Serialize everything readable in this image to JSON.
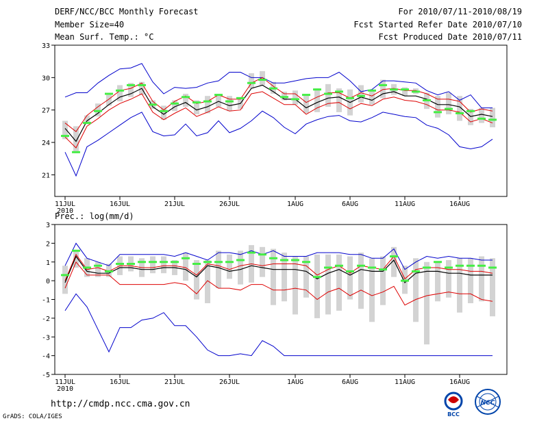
{
  "header": {
    "title": "DERF/NCC/BCC Monthly Forecast",
    "member_size": "Member Size=40",
    "variable": "Mean Surf. Temp.: °C",
    "period": "For 2010/07/11-2010/08/19",
    "started": "Fcst Started Refer Date 2010/07/10",
    "produced": "Fcst Produced Date 2010/07/11"
  },
  "footer": {
    "url": "http://cmdp.ncc.cma.gov.cn",
    "grads": "GrADS: COLA/IGES",
    "logo1_text": "BCC",
    "logo2_text": "NCC"
  },
  "colors": {
    "box": "#d3d3d3",
    "median": "#44ee44",
    "mean": "#000000",
    "sd": "#dd0000",
    "extreme": "#0000cc"
  },
  "chart_data": [
    {
      "type": "line",
      "title": "Mean Surf. Temp.: °C",
      "ylim": [
        19,
        33
      ],
      "yticks": [
        21,
        24,
        27,
        30,
        33
      ],
      "x_ticks": [
        {
          "day": 1,
          "label": "11JUL",
          "sub": "2010"
        },
        {
          "day": 6,
          "label": "16JUL",
          "sub": ""
        },
        {
          "day": 11,
          "label": "21JUL",
          "sub": ""
        },
        {
          "day": 16,
          "label": "26JUL",
          "sub": ""
        },
        {
          "day": 22,
          "label": "1AUG",
          "sub": ""
        },
        {
          "day": 27,
          "label": "6AUG",
          "sub": ""
        },
        {
          "day": 32,
          "label": "11AUG",
          "sub": ""
        },
        {
          "day": 37,
          "label": "16AUG",
          "sub": ""
        }
      ],
      "x": [
        1,
        2,
        3,
        4,
        5,
        6,
        7,
        8,
        9,
        10,
        11,
        12,
        13,
        14,
        15,
        16,
        17,
        18,
        19,
        20,
        21,
        22,
        23,
        24,
        25,
        26,
        27,
        28,
        29,
        30,
        31,
        32,
        33,
        34,
        35,
        36,
        37,
        38,
        39,
        40
      ],
      "series": [
        {
          "name": "max",
          "values": [
            28.2,
            28.6,
            28.6,
            29.5,
            30.2,
            30.8,
            30.9,
            31.3,
            29.6,
            28.5,
            29.1,
            29.0,
            29.1,
            29.5,
            29.7,
            30.5,
            30.5,
            30.0,
            30.0,
            29.5,
            29.5,
            29.7,
            29.9,
            30.0,
            30.0,
            30.5,
            29.7,
            28.7,
            28.9,
            29.7,
            29.7,
            29.6,
            29.5,
            28.8,
            28.4,
            28.7,
            27.9,
            28.4,
            27.2,
            27.2
          ]
        },
        {
          "name": "plus_sd",
          "values": [
            25.8,
            25.0,
            26.5,
            27.3,
            28.0,
            28.8,
            29.0,
            29.5,
            27.8,
            27.0,
            27.8,
            28.3,
            27.6,
            27.8,
            28.4,
            28.0,
            28.0,
            29.5,
            30.0,
            29.2,
            28.5,
            28.5,
            27.7,
            28.2,
            28.6,
            28.6,
            28.1,
            28.6,
            28.3,
            28.9,
            29.0,
            28.8,
            28.8,
            28.5,
            28.0,
            28.0,
            27.8,
            26.8,
            27.1,
            26.9
          ]
        },
        {
          "name": "mean",
          "values": [
            25.3,
            24.1,
            26.0,
            26.7,
            27.5,
            28.2,
            28.5,
            29.0,
            27.3,
            26.6,
            27.3,
            27.7,
            27.0,
            27.3,
            27.8,
            27.4,
            27.6,
            29.0,
            29.3,
            28.7,
            28.0,
            28.0,
            27.2,
            27.7,
            28.1,
            28.2,
            27.7,
            28.2,
            27.9,
            28.5,
            28.7,
            28.3,
            28.3,
            28.0,
            27.5,
            27.5,
            27.3,
            26.4,
            26.6,
            26.4
          ]
        },
        {
          "name": "minus_sd",
          "values": [
            24.5,
            23.5,
            25.5,
            26.2,
            27.0,
            27.6,
            28.0,
            28.5,
            26.8,
            26.1,
            26.7,
            27.2,
            26.4,
            26.8,
            27.3,
            26.9,
            27.0,
            28.5,
            28.7,
            28.1,
            27.5,
            27.5,
            26.6,
            27.2,
            27.6,
            27.7,
            27.1,
            27.6,
            27.4,
            28.0,
            28.2,
            27.9,
            27.8,
            27.5,
            27.0,
            27.0,
            26.8,
            25.9,
            26.2,
            25.8
          ]
        },
        {
          "name": "min",
          "values": [
            23.1,
            20.9,
            23.6,
            24.2,
            24.9,
            25.6,
            26.3,
            26.8,
            25.0,
            24.6,
            24.7,
            25.7,
            24.6,
            24.9,
            26.0,
            24.9,
            25.3,
            26.0,
            26.9,
            26.3,
            25.4,
            24.8,
            25.7,
            26.1,
            26.4,
            26.5,
            26.0,
            25.9,
            26.3,
            26.8,
            26.6,
            26.4,
            26.3,
            25.6,
            25.3,
            24.7,
            23.6,
            23.4,
            23.6,
            24.3
          ]
        },
        {
          "name": "median",
          "values": [
            24.6,
            23.1,
            25.8,
            26.9,
            28.5,
            28.8,
            29.3,
            29.3,
            27.5,
            26.9,
            27.6,
            28.2,
            27.7,
            27.8,
            28.4,
            27.8,
            28.1,
            29.5,
            29.8,
            29.0,
            28.2,
            28.0,
            28.4,
            28.9,
            28.5,
            28.7,
            28.1,
            28.3,
            28.8,
            29.3,
            28.9,
            28.9,
            28.7,
            27.9,
            26.8,
            27.1,
            26.7,
            26.9,
            26.2,
            26.1
          ]
        }
      ],
      "box": {
        "low": [
          24.3,
          23.0,
          25.7,
          26.4,
          27.4,
          27.8,
          28.2,
          28.4,
          27.1,
          26.1,
          26.9,
          27.3,
          26.6,
          26.7,
          27.3,
          26.9,
          27.1,
          29.0,
          29.3,
          28.5,
          27.9,
          27.5,
          26.7,
          26.8,
          27.3,
          26.8,
          26.5,
          27.7,
          27.5,
          28.1,
          28.4,
          28.3,
          28.5,
          27.1,
          26.3,
          26.6,
          26.0,
          25.6,
          25.8,
          25.4
        ],
        "high": [
          26.0,
          25.5,
          26.5,
          27.6,
          28.4,
          29.3,
          29.5,
          29.6,
          27.9,
          27.4,
          27.9,
          28.5,
          27.9,
          28.3,
          28.5,
          28.3,
          28.1,
          30.4,
          30.6,
          29.6,
          28.7,
          28.8,
          28.3,
          29.0,
          29.4,
          29.0,
          28.9,
          29.3,
          28.9,
          29.8,
          29.4,
          29.1,
          29.0,
          28.6,
          28.3,
          28.6,
          28.3,
          27.1,
          27.2,
          27.2
        ]
      }
    },
    {
      "type": "line",
      "title": "Prec.: log(mm/d)",
      "ylim": [
        -5,
        3
      ],
      "yticks": [
        -5,
        -4,
        -3,
        -2,
        -1,
        0,
        1,
        2,
        3
      ],
      "x": [
        1,
        2,
        3,
        4,
        5,
        6,
        7,
        8,
        9,
        10,
        11,
        12,
        13,
        14,
        15,
        16,
        17,
        18,
        19,
        20,
        21,
        22,
        23,
        24,
        25,
        26,
        27,
        28,
        29,
        30,
        31,
        32,
        33,
        34,
        35,
        36,
        37,
        38,
        39,
        40
      ],
      "series": [
        {
          "name": "max",
          "values": [
            0.8,
            2.0,
            1.2,
            1.0,
            0.8,
            1.4,
            1.4,
            1.4,
            1.4,
            1.4,
            1.3,
            1.5,
            1.3,
            1.1,
            1.5,
            1.5,
            1.4,
            1.6,
            1.4,
            1.6,
            1.3,
            1.3,
            1.3,
            1.5,
            1.5,
            1.5,
            1.4,
            1.4,
            1.2,
            1.2,
            1.7,
            0.6,
            1.0,
            1.3,
            1.2,
            1.3,
            1.2,
            1.2,
            1.1,
            1.1
          ]
        },
        {
          "name": "plus_sd",
          "values": [
            0.0,
            1.4,
            0.6,
            0.7,
            0.5,
            0.8,
            0.8,
            0.7,
            0.7,
            0.8,
            0.8,
            0.7,
            0.3,
            0.9,
            0.8,
            0.6,
            0.8,
            0.9,
            0.8,
            0.9,
            0.9,
            0.9,
            0.8,
            0.3,
            0.6,
            0.8,
            0.4,
            0.8,
            0.7,
            0.6,
            1.3,
            0.1,
            0.6,
            0.7,
            0.7,
            0.6,
            0.6,
            0.5,
            0.5,
            0.4
          ]
        },
        {
          "name": "mean",
          "values": [
            -0.1,
            1.3,
            0.5,
            0.4,
            0.4,
            0.7,
            0.7,
            0.6,
            0.6,
            0.7,
            0.7,
            0.6,
            0.2,
            0.8,
            0.7,
            0.5,
            0.6,
            0.8,
            0.7,
            0.6,
            0.6,
            0.6,
            0.5,
            0.1,
            0.4,
            0.6,
            0.3,
            0.6,
            0.5,
            0.5,
            1.1,
            -0.1,
            0.4,
            0.5,
            0.5,
            0.4,
            0.4,
            0.3,
            0.3,
            0.3
          ]
        },
        {
          "name": "minus_sd",
          "values": [
            -0.4,
            1.0,
            0.3,
            0.3,
            0.3,
            -0.2,
            -0.2,
            -0.2,
            -0.2,
            -0.2,
            -0.1,
            -0.2,
            -0.7,
            0.0,
            -0.4,
            -0.4,
            -0.5,
            -0.2,
            -0.2,
            -0.5,
            -0.5,
            -0.4,
            -0.5,
            -1.0,
            -0.6,
            -0.4,
            -0.8,
            -0.5,
            -0.8,
            -0.6,
            -0.3,
            -1.3,
            -1.0,
            -0.8,
            -0.7,
            -0.6,
            -0.7,
            -0.7,
            -1.0,
            -1.1
          ]
        },
        {
          "name": "min",
          "values": [
            -1.6,
            -0.7,
            -1.4,
            -2.6,
            -3.8,
            -2.5,
            -2.5,
            -2.1,
            -2.0,
            -1.7,
            -2.4,
            -2.4,
            -3.0,
            -3.7,
            -4.0,
            -4.0,
            -3.9,
            -4.0,
            -3.2,
            -3.5,
            -4.0,
            -4.0,
            -4.0,
            -4.0,
            -4.0,
            -4.0,
            -4.0,
            -4.0,
            -4.0,
            -4.0,
            -4.0,
            -4.0,
            -4.0,
            -4.0,
            -4.0,
            -4.0,
            -4.0,
            -4.0,
            -4.0,
            -4.0
          ]
        },
        {
          "name": "median",
          "values": [
            0.3,
            1.6,
            0.7,
            0.8,
            0.5,
            0.9,
            0.9,
            1.0,
            1.0,
            1.0,
            1.0,
            1.2,
            0.9,
            1.0,
            1.0,
            1.0,
            1.1,
            1.5,
            1.4,
            1.2,
            1.1,
            1.1,
            1.0,
            0.2,
            0.7,
            0.8,
            0.5,
            0.8,
            0.7,
            0.6,
            1.3,
            0.0,
            0.5,
            0.7,
            1.0,
            0.7,
            0.8,
            0.8,
            0.8,
            0.7
          ]
        }
      ],
      "box": {
        "low": [
          -0.7,
          0.7,
          0.2,
          0.2,
          0.2,
          0.3,
          0.5,
          0.2,
          0.4,
          0.4,
          0.3,
          0.0,
          -1.0,
          -1.2,
          -0.4,
          0.1,
          -0.2,
          -0.1,
          0.2,
          -1.3,
          -1.1,
          -1.8,
          -0.9,
          -2.0,
          -1.8,
          -1.6,
          -1.0,
          -1.5,
          -2.2,
          -1.3,
          0.2,
          -0.7,
          -2.2,
          -3.4,
          -1.1,
          -0.9,
          -1.7,
          -1.2,
          -1.1,
          -1.9
        ],
        "high": [
          0.8,
          1.6,
          1.2,
          1.0,
          0.9,
          1.3,
          1.3,
          1.2,
          1.3,
          1.3,
          1.1,
          1.5,
          1.1,
          1.1,
          1.6,
          1.4,
          1.6,
          1.9,
          1.8,
          1.7,
          1.5,
          1.3,
          1.3,
          1.4,
          1.4,
          1.4,
          1.3,
          1.5,
          1.2,
          1.3,
          1.8,
          0.8,
          1.2,
          1.0,
          1.0,
          1.1,
          1.2,
          1.2,
          1.3,
          1.2
        ]
      }
    }
  ]
}
